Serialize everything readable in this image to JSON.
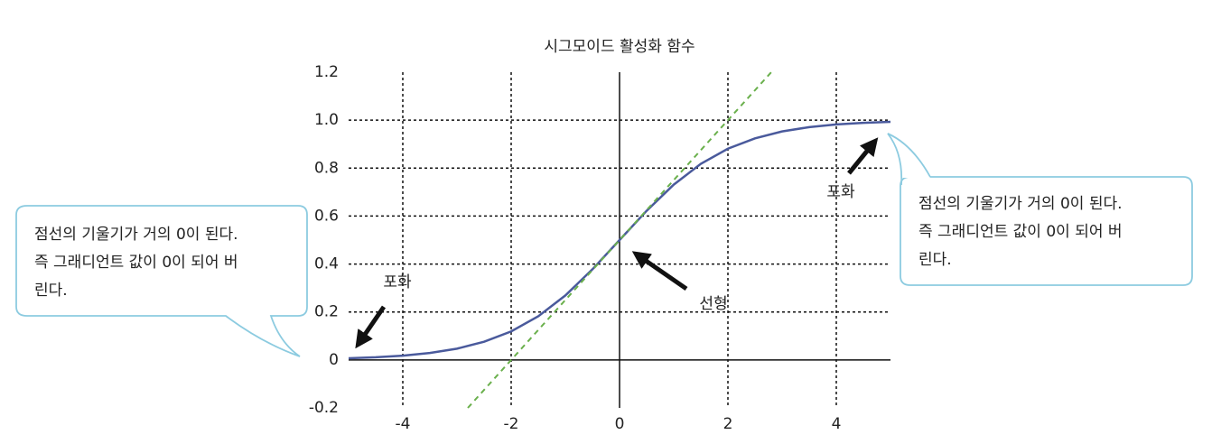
{
  "chart_data": {
    "type": "line",
    "title": "시그모이드 활성화 함수",
    "series": [
      {
        "color": "#4a5a9c",
        "style": "solid",
        "x": [
          -5,
          -4.5,
          -4,
          -3.5,
          -3,
          -2.5,
          -2,
          -1.5,
          -1,
          -0.5,
          0,
          0.5,
          1,
          1.5,
          2,
          2.5,
          3,
          3.5,
          4,
          4.5,
          5
        ],
        "values": [
          0.007,
          0.011,
          0.018,
          0.029,
          0.047,
          0.076,
          0.119,
          0.182,
          0.269,
          0.378,
          0.5,
          0.622,
          0.731,
          0.818,
          0.881,
          0.924,
          0.953,
          0.971,
          0.982,
          0.989,
          0.993
        ]
      },
      {
        "color": "#6ab04c",
        "style": "dashed",
        "x": [
          -2.8,
          2.8
        ],
        "values": [
          -0.2,
          1.2
        ]
      }
    ],
    "xlim": [
      -5,
      5
    ],
    "ylim": [
      -0.2,
      1.2
    ],
    "xticks": [
      -4,
      -2,
      0,
      2,
      4
    ],
    "yticks": [
      1.2,
      {
        "value": 1,
        "label": "1.0"
      },
      0.8,
      0.6,
      0.4,
      0.2,
      0,
      -0.2
    ],
    "grid": true,
    "annotations": [
      "포화",
      "포화",
      "선형"
    ],
    "callouts": [
      {
        "lines": [
          "점선의 기울기가 거의 0이 된다.",
          "즉 그래디언트 값이 0이 되어 버",
          "린다."
        ]
      },
      {
        "lines": [
          "점선의 기울기가 거의 0이 된다.",
          "즉 그래디언트 값이 0이 되어 버",
          "린다."
        ]
      }
    ]
  }
}
